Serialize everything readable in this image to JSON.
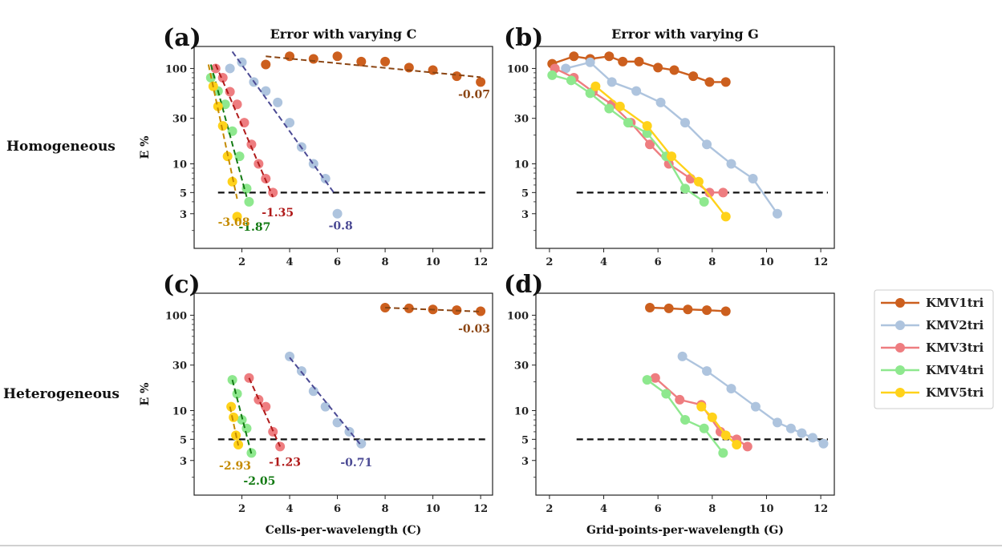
{
  "legend": {
    "position": "right",
    "entries": [
      {
        "name": "KMV1tri",
        "color": "#cc5f1e"
      },
      {
        "name": "KMV2tri",
        "color": "#aec4de"
      },
      {
        "name": "KMV3tri",
        "color": "#ee7d80"
      },
      {
        "name": "KMV4tri",
        "color": "#8ee88e"
      },
      {
        "name": "KMV5tri",
        "color": "#ffd21a"
      }
    ]
  },
  "row_labels": [
    "Homogeneous",
    "Heterogeneous"
  ],
  "chart_data": [
    {
      "type": "scatter",
      "panel": "(a)",
      "title": "Error with varying C",
      "xlabel": "",
      "ylabel": "E %",
      "yscale": "log",
      "xlim": [
        0,
        12.5
      ],
      "ylim": [
        1.3,
        170
      ],
      "xticks": [
        2,
        4,
        6,
        8,
        10,
        12
      ],
      "yticks": [
        3,
        5,
        10,
        30,
        100
      ],
      "threshold": {
        "y": 5,
        "x_start": 1
      },
      "series": [
        {
          "name": "KMV1tri",
          "color": "#cc5f1e",
          "fit_color": "#8b4513",
          "slope": "-0.07",
          "x": [
            3,
            4,
            5,
            6,
            7,
            8,
            9,
            10,
            11,
            12
          ],
          "y": [
            110,
            134,
            126,
            134,
            118,
            118,
            102,
            96,
            83,
            72
          ],
          "fit": [
            [
              3,
              134
            ],
            [
              12,
              81
            ]
          ]
        },
        {
          "name": "KMV2tri",
          "color": "#aec4de",
          "fit_color": "#4b4a94",
          "slope": "-0.8",
          "x": [
            1.5,
            2,
            2.5,
            3,
            3.5,
            4,
            4.5,
            5,
            5.5,
            6
          ],
          "y": [
            100,
            116,
            72,
            58,
            44,
            27,
            15,
            10,
            7,
            3
          ],
          "fit": [
            [
              1.6,
              150
            ],
            [
              5.9,
              4.8
            ]
          ]
        },
        {
          "name": "KMV3tri",
          "color": "#ee7d80",
          "fit_color": "#b01a1a",
          "slope": "-1.35",
          "x": [
            0.9,
            1.2,
            1.5,
            1.8,
            2.1,
            2.4,
            2.7,
            3.0,
            3.3
          ],
          "y": [
            100,
            80,
            57,
            42,
            27,
            16,
            10,
            7,
            5
          ],
          "fit": [
            [
              0.9,
              110
            ],
            [
              3.3,
              4.5
            ]
          ]
        },
        {
          "name": "KMV4tri",
          "color": "#8ee88e",
          "fit_color": "#137a13",
          "slope": "-1.87",
          "x": [
            0.7,
            1.0,
            1.3,
            1.6,
            1.9,
            2.2,
            2.3
          ],
          "y": [
            80,
            58,
            42,
            22,
            12,
            5.5,
            4
          ],
          "fit": [
            [
              0.7,
              110
            ],
            [
              2.2,
              4.5
            ]
          ]
        },
        {
          "name": "KMV5tri",
          "color": "#ffd21a",
          "fit_color": "#c48a00",
          "slope": "-3.08",
          "x": [
            0.8,
            1.0,
            1.2,
            1.4,
            1.6,
            1.8
          ],
          "y": [
            65,
            40,
            25,
            12,
            6.5,
            2.8
          ],
          "fit": [
            [
              0.6,
              110
            ],
            [
              1.8,
              4.3
            ]
          ]
        }
      ]
    },
    {
      "type": "line",
      "panel": "(b)",
      "title": "Error with varying G",
      "xlabel": "",
      "ylabel": "",
      "yscale": "log",
      "xlim": [
        1.5,
        12.5
      ],
      "ylim": [
        1.3,
        170
      ],
      "xticks": [
        2,
        4,
        6,
        8,
        10,
        12
      ],
      "yticks": [
        3,
        5,
        10,
        30,
        100
      ],
      "threshold": {
        "y": 5,
        "x_start": 3
      },
      "series": [
        {
          "name": "KMV1tri",
          "color": "#cc5f1e",
          "x": [
            2.1,
            2.9,
            3.5,
            4.2,
            4.7,
            5.3,
            6.0,
            6.6,
            7.3,
            7.9,
            8.5
          ],
          "y": [
            112,
            134,
            126,
            134,
            118,
            118,
            102,
            96,
            83,
            72,
            72
          ]
        },
        {
          "name": "KMV2tri",
          "color": "#aec4de",
          "x": [
            2.6,
            3.5,
            4.3,
            5.2,
            6.1,
            7.0,
            7.8,
            8.7,
            9.5,
            10.4
          ],
          "y": [
            100,
            116,
            72,
            58,
            44,
            27,
            16,
            10,
            7,
            3
          ]
        },
        {
          "name": "KMV3tri",
          "color": "#ee7d80",
          "x": [
            2.2,
            2.9,
            3.6,
            4.3,
            5.0,
            5.7,
            6.4,
            7.2,
            7.9,
            8.4
          ],
          "y": [
            100,
            80,
            57,
            42,
            27,
            16,
            10,
            7,
            5,
            5
          ]
        },
        {
          "name": "KMV4tri",
          "color": "#8ee88e",
          "x": [
            2.1,
            2.8,
            3.5,
            4.2,
            4.9,
            5.6,
            6.3,
            7.0,
            7.7
          ],
          "y": [
            85,
            75,
            55,
            38,
            27,
            21,
            12,
            5.5,
            4
          ]
        },
        {
          "name": "KMV5tri",
          "color": "#ffd21a",
          "x": [
            3.7,
            4.6,
            5.6,
            6.5,
            7.5,
            8.5
          ],
          "y": [
            65,
            40,
            25,
            12,
            6.5,
            2.8
          ]
        }
      ]
    },
    {
      "type": "scatter",
      "panel": "(c)",
      "title": "",
      "xlabel": "Cells-per-wavelength (C)",
      "ylabel": "E %",
      "yscale": "log",
      "xlim": [
        0,
        12.5
      ],
      "ylim": [
        1.3,
        170
      ],
      "xticks": [
        2,
        4,
        6,
        8,
        10,
        12
      ],
      "yticks": [
        3,
        5,
        10,
        30,
        100
      ],
      "threshold": {
        "y": 5,
        "x_start": 1
      },
      "series": [
        {
          "name": "KMV1tri",
          "color": "#cc5f1e",
          "fit_color": "#8b4513",
          "slope": "-0.03",
          "x": [
            8,
            9,
            10,
            11,
            12
          ],
          "y": [
            120,
            118,
            115,
            113,
            110
          ],
          "fit": [
            [
              8,
              120
            ],
            [
              12,
              109
            ]
          ]
        },
        {
          "name": "KMV2tri",
          "color": "#aec4de",
          "fit_color": "#4b4a94",
          "slope": "-0.71",
          "x": [
            4,
            4.5,
            5,
            5.5,
            6,
            6.5,
            7
          ],
          "y": [
            37,
            26,
            16,
            11,
            7.5,
            6,
            4.5
          ],
          "fit": [
            [
              4,
              36
            ],
            [
              7,
              4.3
            ]
          ]
        },
        {
          "name": "KMV3tri",
          "color": "#ee7d80",
          "fit_color": "#b01a1a",
          "slope": "-1.23",
          "x": [
            2.3,
            2.7,
            3.0,
            3.3,
            3.6
          ],
          "y": [
            22,
            13,
            11,
            6,
            4.2
          ],
          "fit": [
            [
              2.3,
              22
            ],
            [
              3.6,
              4.2
            ]
          ]
        },
        {
          "name": "KMV4tri",
          "color": "#8ee88e",
          "fit_color": "#137a13",
          "slope": "-2.05",
          "x": [
            1.6,
            1.8,
            2.0,
            2.2,
            2.4
          ],
          "y": [
            21,
            15,
            8,
            6.5,
            3.6
          ],
          "fit": [
            [
              1.6,
              21
            ],
            [
              2.4,
              3.5
            ]
          ]
        },
        {
          "name": "KMV5tri",
          "color": "#ffd21a",
          "fit_color": "#c48a00",
          "slope": "-2.93",
          "x": [
            1.55,
            1.65,
            1.75,
            1.85
          ],
          "y": [
            11,
            8.5,
            5.5,
            4.4
          ],
          "fit": [
            [
              1.5,
              11
            ],
            [
              1.85,
              4.3
            ]
          ]
        }
      ]
    },
    {
      "type": "line",
      "panel": "(d)",
      "title": "",
      "xlabel": "Grid-points-per-wavelength (G)",
      "ylabel": "",
      "yscale": "log",
      "xlim": [
        1.5,
        12.5
      ],
      "ylim": [
        1.3,
        170
      ],
      "xticks": [
        2,
        4,
        6,
        8,
        10,
        12
      ],
      "yticks": [
        3,
        5,
        10,
        30,
        100
      ],
      "threshold": {
        "y": 5,
        "x_start": 3
      },
      "series": [
        {
          "name": "KMV1tri",
          "color": "#cc5f1e",
          "x": [
            5.7,
            6.4,
            7.1,
            7.8,
            8.5
          ],
          "y": [
            120,
            118,
            115,
            113,
            110
          ]
        },
        {
          "name": "KMV2tri",
          "color": "#aec4de",
          "x": [
            6.9,
            7.8,
            8.7,
            9.6,
            10.4,
            10.9,
            11.3,
            11.7,
            12.1
          ],
          "y": [
            37,
            26,
            17,
            11,
            7.5,
            6.5,
            5.8,
            5.2,
            4.5
          ]
        },
        {
          "name": "KMV3tri",
          "color": "#ee7d80",
          "x": [
            5.9,
            6.8,
            7.6,
            8.3,
            8.9,
            9.3
          ],
          "y": [
            22,
            13,
            11.5,
            6,
            5,
            4.2
          ]
        },
        {
          "name": "KMV4tri",
          "color": "#8ee88e",
          "x": [
            5.6,
            6.3,
            7.0,
            7.7,
            8.4
          ],
          "y": [
            21,
            15,
            8,
            6.5,
            3.6
          ]
        },
        {
          "name": "KMV5tri",
          "color": "#ffd21a",
          "x": [
            7.6,
            8.0,
            8.5,
            8.9
          ],
          "y": [
            11,
            8.5,
            5.5,
            4.4
          ]
        }
      ]
    }
  ]
}
